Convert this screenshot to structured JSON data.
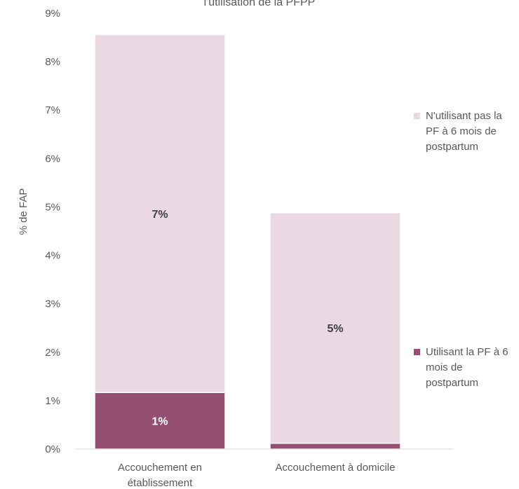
{
  "chart_data": {
    "type": "bar",
    "stacked": true,
    "title": "l'utilisation de la PFPP",
    "ylabel": "% de FAP",
    "xlabel": "",
    "ylim": [
      0,
      9
    ],
    "yticks": [
      0,
      1,
      2,
      3,
      4,
      5,
      6,
      7,
      8,
      9
    ],
    "ytick_labels": [
      "0%",
      "1%",
      "2%",
      "3%",
      "4%",
      "5%",
      "6%",
      "7%",
      "8%",
      "9%"
    ],
    "categories": [
      "Accouchement en établissement",
      "Accouchement à domicile"
    ],
    "category_lines": [
      [
        "Accouchement en",
        "établissement"
      ],
      [
        "Accouchement à domicile"
      ]
    ],
    "series": [
      {
        "name": "Utilisant la PF à 6 mois de postpartum",
        "color": "#954F72",
        "values": [
          1.17,
          0.12
        ],
        "labels": [
          "1%",
          ""
        ]
      },
      {
        "name": "N'utilisant pas la PF à 6 mois de postpartum",
        "color": "#EAD8E3",
        "values": [
          7.39,
          4.76
        ],
        "labels": [
          "7%",
          "5%"
        ]
      }
    ],
    "legend_placement": "right",
    "grid": false
  }
}
